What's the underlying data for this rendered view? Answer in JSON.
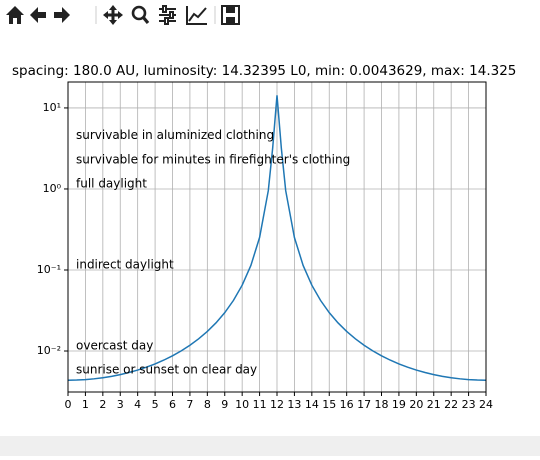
{
  "chart_data": {
    "type": "line",
    "title": "spacing: 180.0 AU, luminosity: 14.32395 L0, min: 0.0043629, max: 14.325",
    "x": [
      0,
      0.5,
      1,
      1.5,
      2,
      2.5,
      3,
      3.5,
      4,
      4.5,
      5,
      5.5,
      6,
      6.5,
      7,
      7.5,
      8,
      8.5,
      9,
      9.5,
      10,
      10.5,
      11,
      11.5,
      11.75,
      12,
      12.25,
      12.5,
      13,
      13.5,
      14,
      14.5,
      15,
      15.5,
      16,
      16.5,
      17,
      17.5,
      18,
      18.5,
      19,
      19.5,
      20,
      20.5,
      21,
      21.5,
      22,
      22.5,
      23,
      23.5,
      24
    ],
    "series": [
      {
        "color": "#1f77b4",
        "values": [
          0.0043629,
          0.004385,
          0.004442,
          0.004539,
          0.00468,
          0.004869,
          0.005115,
          0.005428,
          0.005821,
          0.006315,
          0.006936,
          0.007723,
          0.00873,
          0.01004,
          0.01178,
          0.01414,
          0.01745,
          0.02229,
          0.02976,
          0.04215,
          0.06491,
          0.1138,
          0.2517,
          0.952,
          3.175,
          14.32,
          3.175,
          0.952,
          0.2517,
          0.1138,
          0.06491,
          0.04215,
          0.02976,
          0.02229,
          0.01745,
          0.01414,
          0.01178,
          0.01004,
          0.00873,
          0.007723,
          0.006936,
          0.006315,
          0.005821,
          0.005428,
          0.005115,
          0.004869,
          0.00468,
          0.004539,
          0.004442,
          0.004385,
          0.0043629
        ]
      }
    ],
    "xlim": [
      0,
      24
    ],
    "xticks": [
      0,
      1,
      2,
      3,
      4,
      5,
      6,
      7,
      8,
      9,
      10,
      11,
      12,
      13,
      14,
      15,
      16,
      17,
      18,
      19,
      20,
      21,
      22,
      23,
      24
    ],
    "ylim": [
      0.00312,
      20.9
    ],
    "yticks": [
      {
        "value": 0.01,
        "label": "10⁻²"
      },
      {
        "value": 0.1,
        "label": "10⁻¹"
      },
      {
        "value": 1,
        "label": "10⁰"
      },
      {
        "value": 10,
        "label": "10¹"
      }
    ],
    "log_y": true,
    "grid": true,
    "annotations": [
      {
        "text": "survivable in aluminized clothing",
        "x": 0.46,
        "y": 4.6
      },
      {
        "text": "survivable for minutes in firefighter's clothing",
        "x": 0.46,
        "y": 2.28
      },
      {
        "text": "full daylight",
        "x": 0.46,
        "y": 1.15
      },
      {
        "text": "indirect daylight",
        "x": 0.46,
        "y": 0.115
      },
      {
        "text": "overcast day",
        "x": 0.46,
        "y": 0.0116
      },
      {
        "text": "sunrise or sunset on clear day",
        "x": 0.46,
        "y": 0.0058
      }
    ]
  }
}
